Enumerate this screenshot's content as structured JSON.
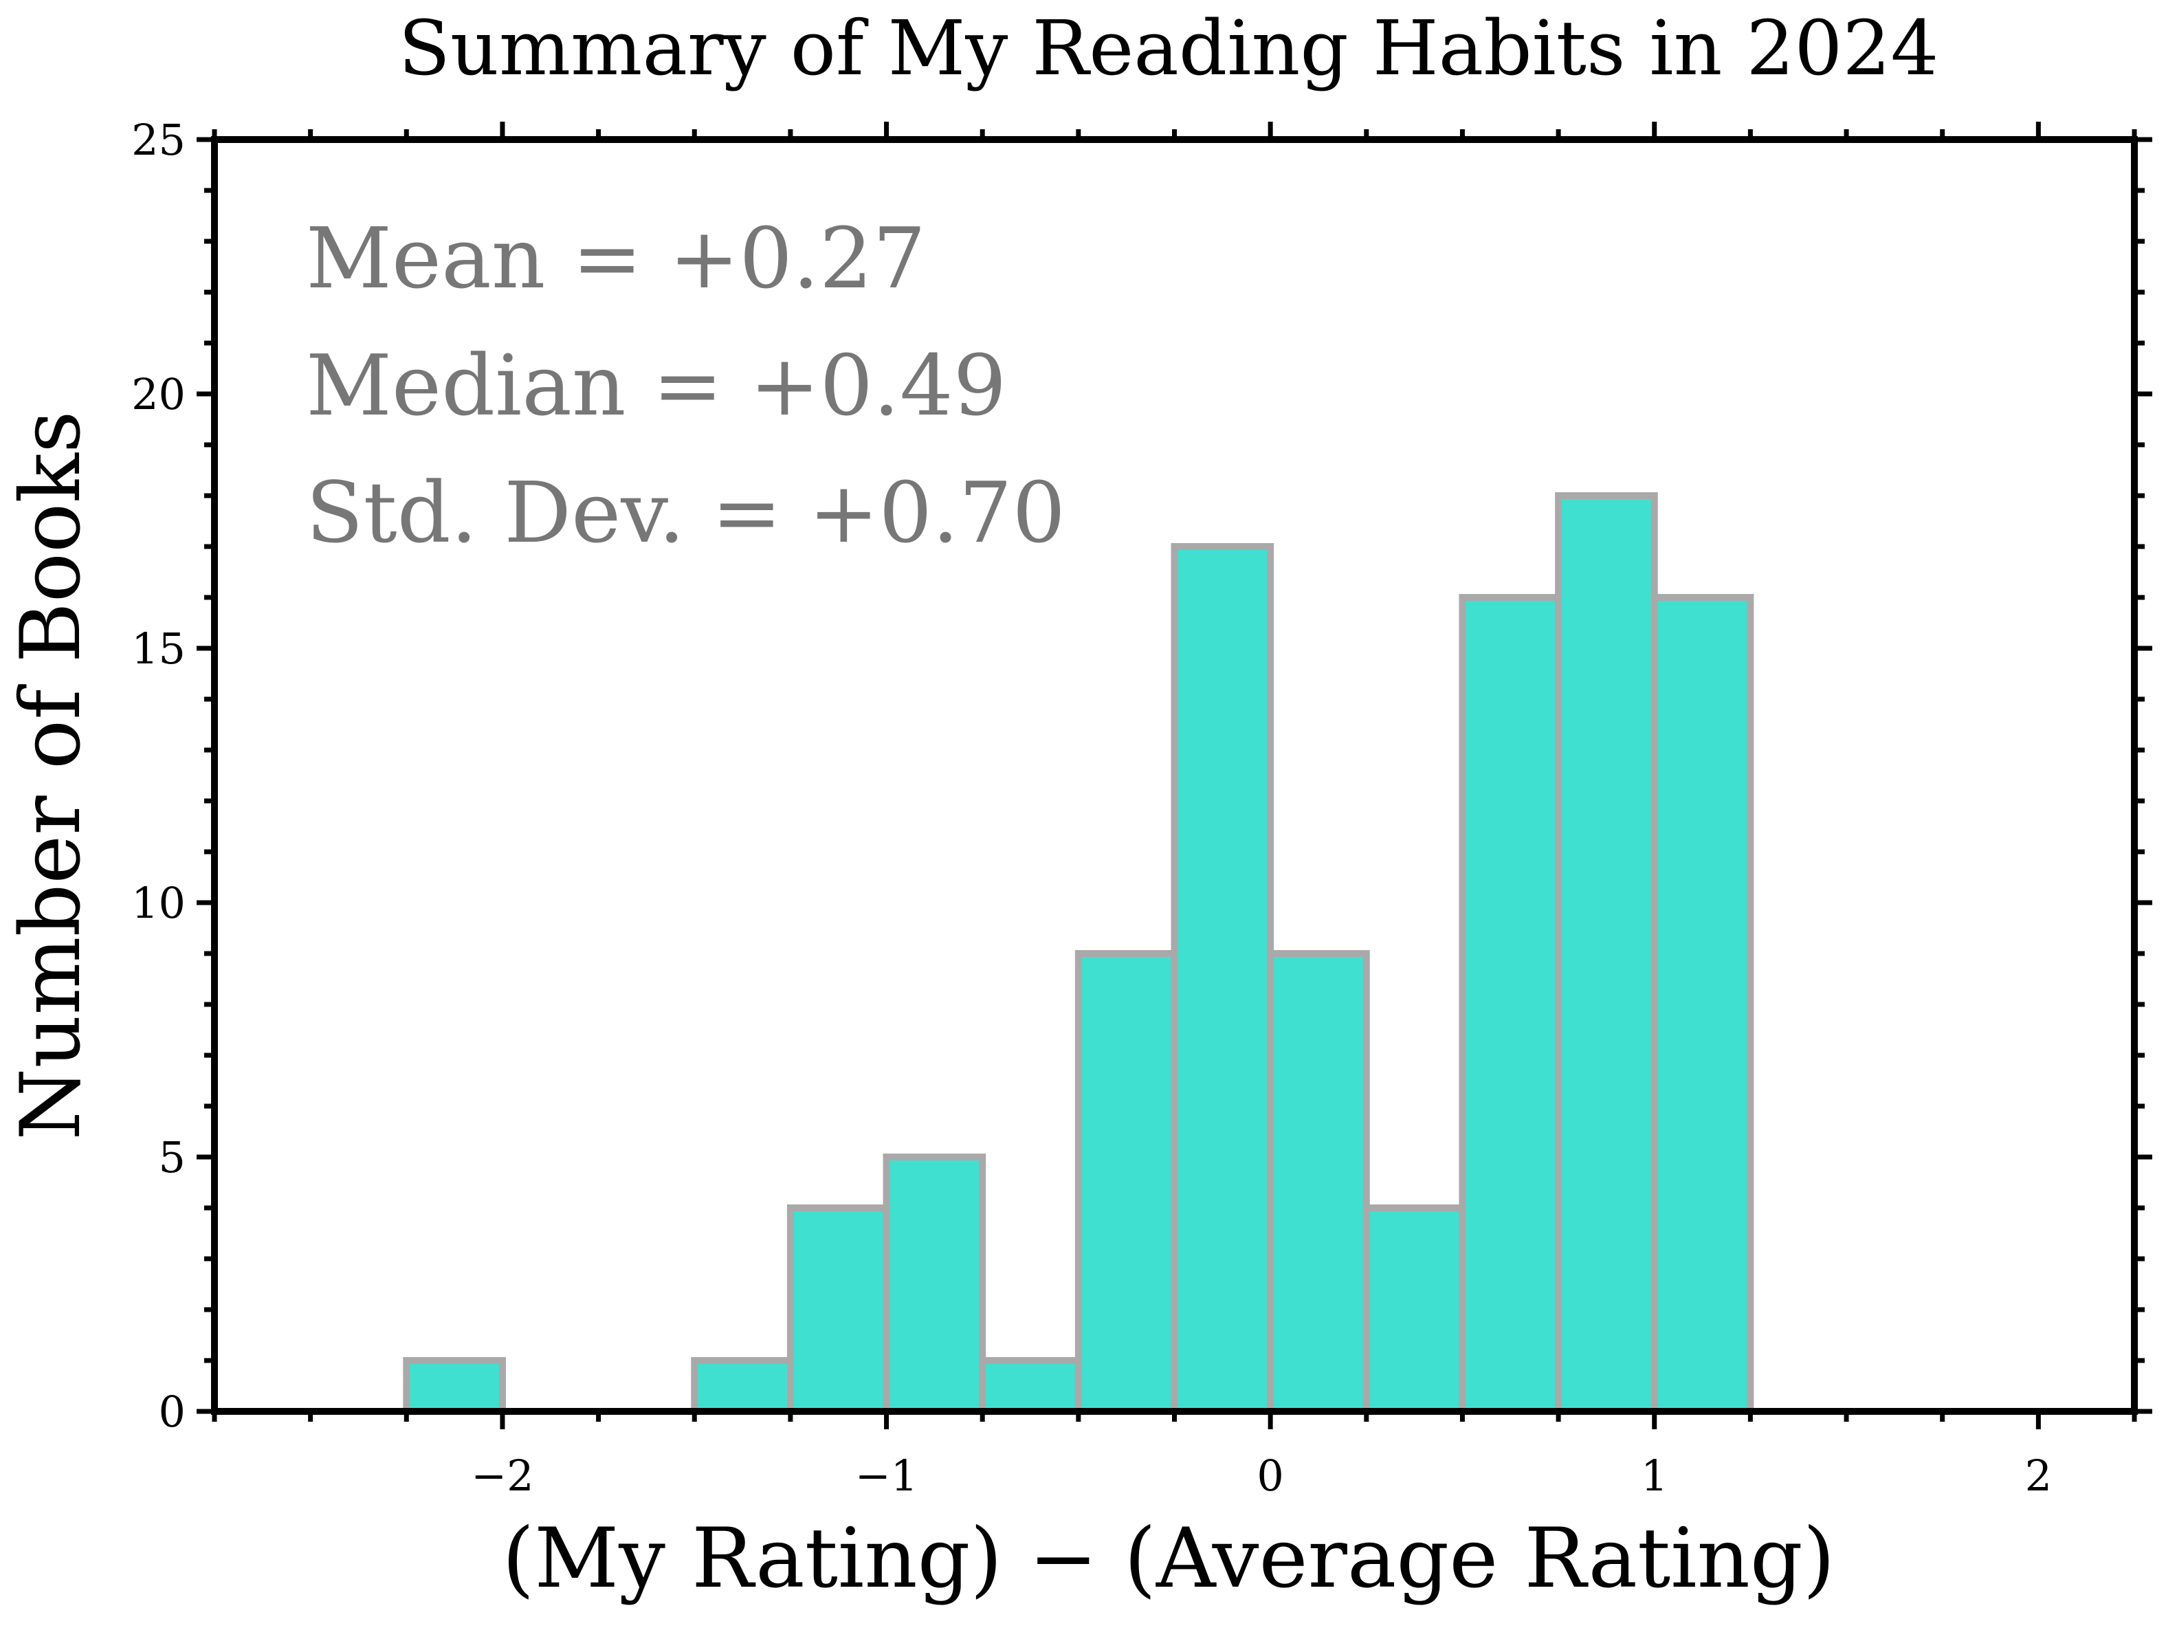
{
  "chart_data": {
    "type": "bar",
    "subtype": "histogram",
    "title": "Summary of My Reading Habits in 2024",
    "xlabel": "(My Rating) − (Average Rating)",
    "ylabel": "Number of Books",
    "xlim": [
      -2.75,
      2.25
    ],
    "ylim": [
      0,
      25
    ],
    "bin_width": 0.25,
    "bins": [
      {
        "start": -2.25,
        "end": -2.0,
        "count": 1
      },
      {
        "start": -2.0,
        "end": -1.75,
        "count": 0
      },
      {
        "start": -1.75,
        "end": -1.5,
        "count": 0
      },
      {
        "start": -1.5,
        "end": -1.25,
        "count": 1
      },
      {
        "start": -1.25,
        "end": -1.0,
        "count": 4
      },
      {
        "start": -1.0,
        "end": -0.75,
        "count": 5
      },
      {
        "start": -0.75,
        "end": -0.5,
        "count": 1
      },
      {
        "start": -0.5,
        "end": -0.25,
        "count": 9
      },
      {
        "start": -0.25,
        "end": 0.0,
        "count": 17
      },
      {
        "start": 0.0,
        "end": 0.25,
        "count": 9
      },
      {
        "start": 0.25,
        "end": 0.5,
        "count": 4
      },
      {
        "start": 0.5,
        "end": 0.75,
        "count": 16
      },
      {
        "start": 0.75,
        "end": 1.0,
        "count": 18
      },
      {
        "start": 1.0,
        "end": 1.25,
        "count": 16
      }
    ],
    "x_ticks": [
      {
        "value": -2,
        "label": "−2"
      },
      {
        "value": -1,
        "label": "−1"
      },
      {
        "value": 0,
        "label": "0"
      },
      {
        "value": 1,
        "label": "1"
      },
      {
        "value": 2,
        "label": "2"
      }
    ],
    "y_ticks": [
      {
        "value": 0,
        "label": "0"
      },
      {
        "value": 5,
        "label": "5"
      },
      {
        "value": 10,
        "label": "10"
      },
      {
        "value": 15,
        "label": "15"
      },
      {
        "value": 20,
        "label": "20"
      },
      {
        "value": 25,
        "label": "25"
      }
    ],
    "annotations": [
      "Mean = +0.27",
      "Median = +0.49",
      "Std. Dev. = +0.70"
    ],
    "grid": false,
    "legend": "none",
    "colors": {
      "bar_fill": "#40E0D0",
      "bar_edge": "#A9A9A9",
      "axes": "#000000",
      "text": "#000000",
      "annotation_text": "#777777"
    }
  }
}
